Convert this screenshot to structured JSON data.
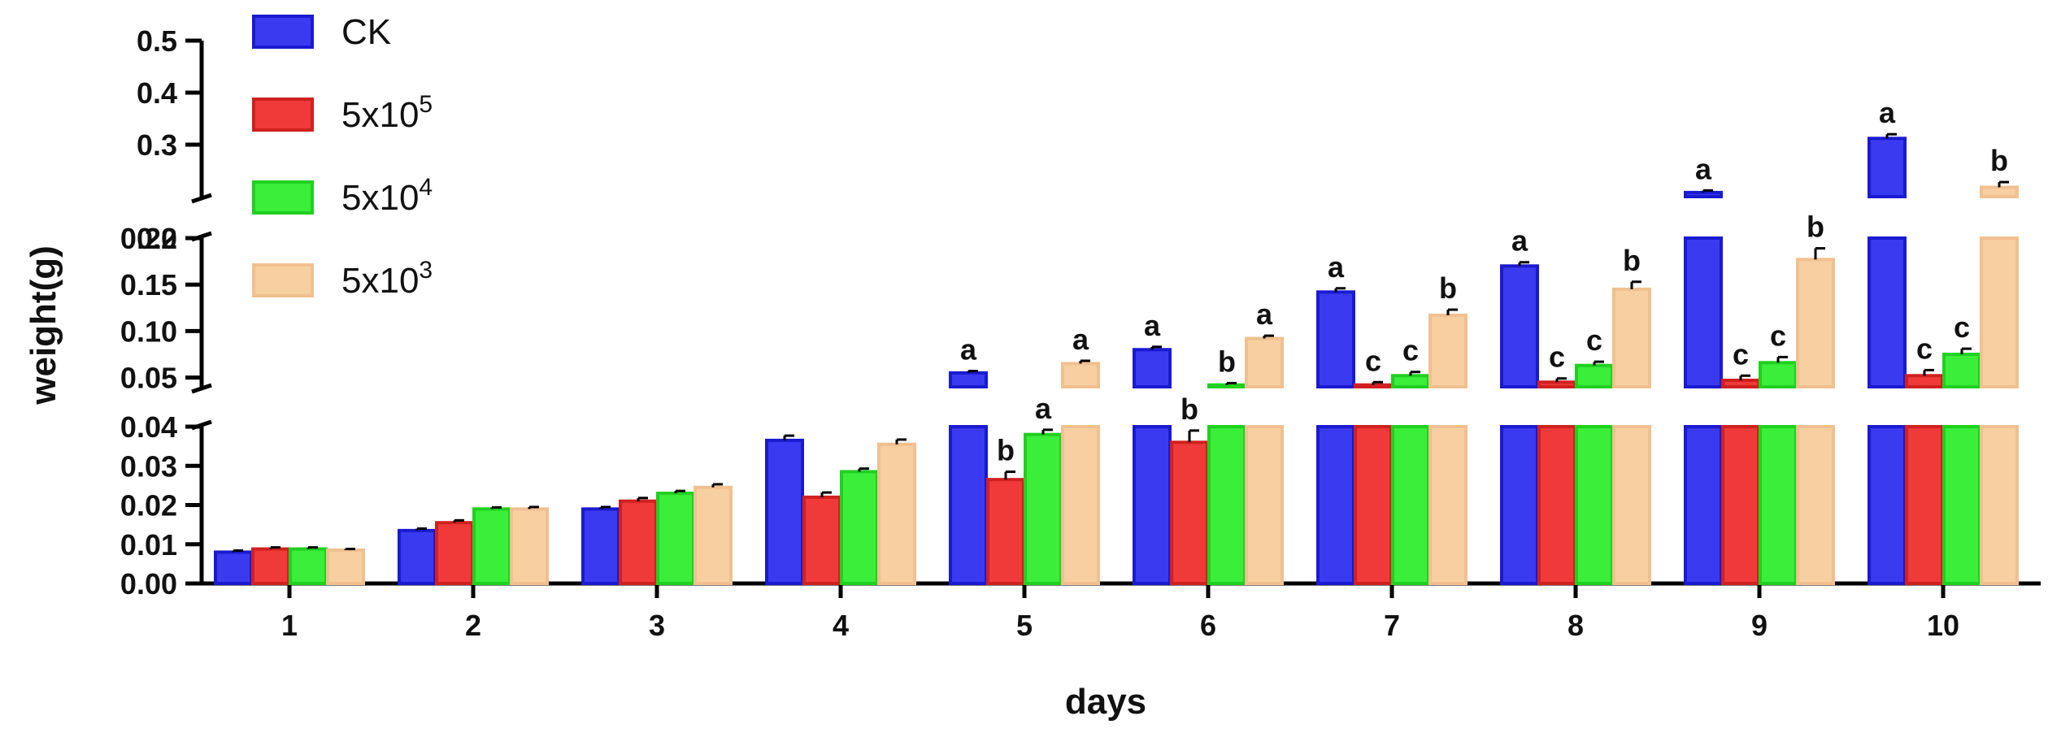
{
  "chart_data": {
    "type": "bar",
    "xlabel": "days",
    "ylabel": "weight(g)",
    "categories": [
      "1",
      "2",
      "3",
      "4",
      "5",
      "6",
      "7",
      "8",
      "9",
      "10"
    ],
    "y_axis": "broken",
    "segments": [
      {
        "range": [
          0.0,
          0.04
        ],
        "ticks": [
          "0.00",
          "0.01",
          "0.02",
          "0.03",
          "0.04"
        ],
        "tick_values": [
          0,
          0.01,
          0.02,
          0.03,
          0.04
        ]
      },
      {
        "range": [
          0.04,
          0.2
        ],
        "ticks": [
          "0.05",
          "0.10",
          "0.15",
          "0.20"
        ],
        "tick_values": [
          0.05,
          0.1,
          0.15,
          0.2
        ]
      },
      {
        "range": [
          0.2,
          0.5
        ],
        "ticks": [
          "0.2",
          "0.3",
          "0.4",
          "0.5"
        ],
        "tick_values": [
          0.2,
          0.3,
          0.4,
          0.5
        ]
      }
    ],
    "legend": {
      "position": "top-left"
    },
    "series": [
      {
        "name": "CK",
        "name_base": "CK",
        "name_exp": "",
        "color": "#3a3af0",
        "border": "#1a1ad0",
        "values": [
          0.008,
          0.0135,
          0.019,
          0.0365,
          0.055,
          0.08,
          0.142,
          0.17,
          0.208,
          0.312
        ],
        "errors": [
          0.0004,
          0.0005,
          0.0005,
          0.0012,
          0.002,
          0.003,
          0.004,
          0.004,
          0.004,
          0.008
        ],
        "letters": [
          "",
          "",
          "",
          "",
          "a",
          "a",
          "a",
          "a",
          "a",
          "a"
        ]
      },
      {
        "name": "5x10^5",
        "name_base": "5x10",
        "name_exp": "5",
        "color": "#f03a3a",
        "border": "#d02020",
        "values": [
          0.0088,
          0.0155,
          0.021,
          0.022,
          0.0265,
          0.036,
          0.042,
          0.045,
          0.047,
          0.052
        ],
        "errors": [
          0.0004,
          0.0006,
          0.0008,
          0.0012,
          0.002,
          0.003,
          0.003,
          0.004,
          0.005,
          0.006
        ],
        "letters": [
          "",
          "",
          "",
          "",
          "b",
          "b",
          "c",
          "c",
          "c",
          "c"
        ]
      },
      {
        "name": "5x10^4",
        "name_base": "5x10",
        "name_exp": "4",
        "color": "#3aee3a",
        "border": "#20d020",
        "values": [
          0.0088,
          0.019,
          0.023,
          0.0285,
          0.038,
          0.042,
          0.052,
          0.063,
          0.066,
          0.075
        ],
        "errors": [
          0.0004,
          0.0004,
          0.0006,
          0.0008,
          0.0012,
          0.002,
          0.004,
          0.004,
          0.006,
          0.006
        ],
        "letters": [
          "",
          "",
          "",
          "",
          "a",
          "b",
          "c",
          "c",
          "c",
          "c"
        ]
      },
      {
        "name": "5x10^3",
        "name_base": "5x10",
        "name_exp": "3",
        "color": "#f8cfa0",
        "border": "#f0c090",
        "values": [
          0.0085,
          0.019,
          0.0245,
          0.0355,
          0.065,
          0.092,
          0.117,
          0.145,
          0.177,
          0.218
        ],
        "errors": [
          0.0003,
          0.0005,
          0.0008,
          0.0012,
          0.003,
          0.003,
          0.006,
          0.008,
          0.012,
          0.01
        ],
        "letters": [
          "",
          "",
          "",
          "",
          "a",
          "a",
          "b",
          "b",
          "b",
          "b"
        ]
      }
    ],
    "letter_overrides": [
      {
        "day_index": 4,
        "series_index": 2,
        "letters": [
          "a",
          "b"
        ]
      }
    ]
  }
}
